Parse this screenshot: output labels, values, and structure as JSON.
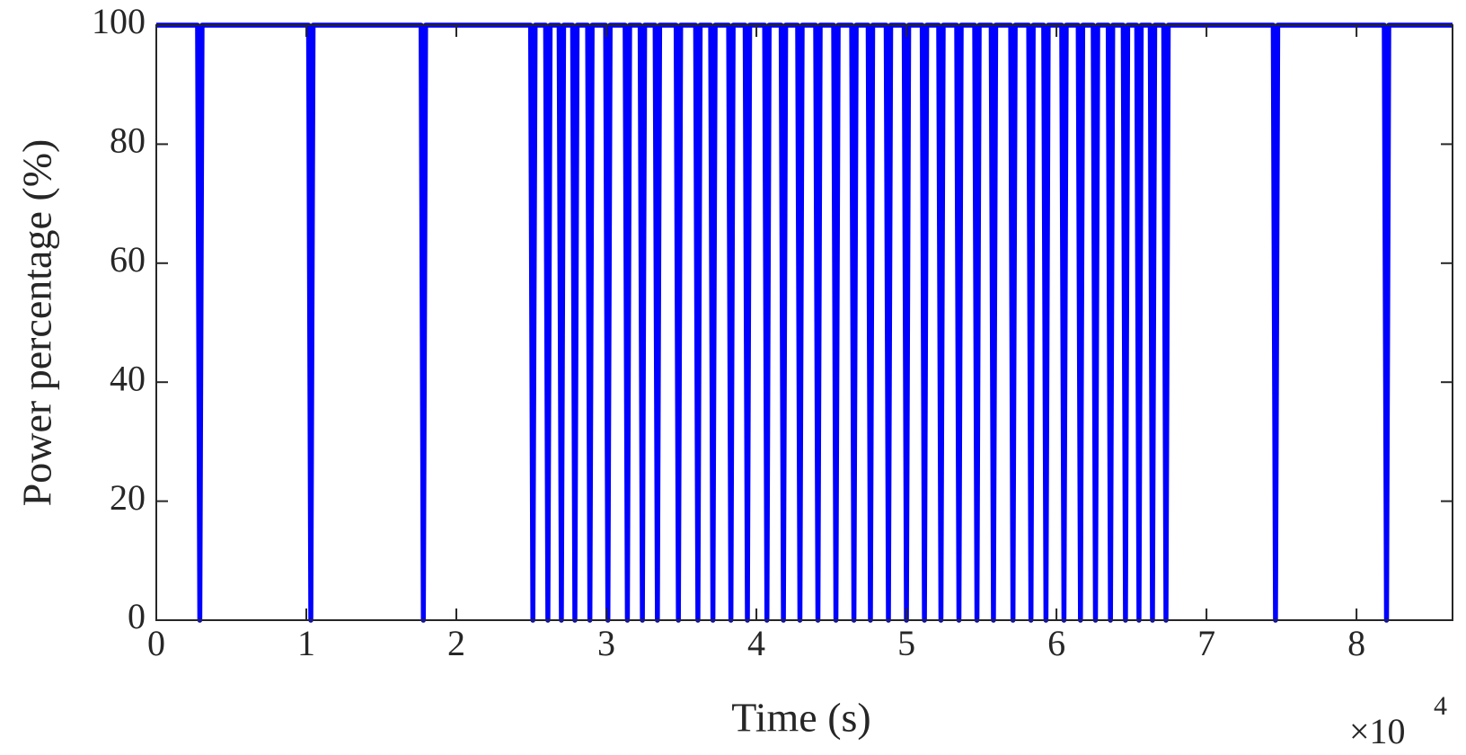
{
  "chart_data": {
    "type": "line",
    "x_label": "Time (s)",
    "y_label": "Power percentage (%)",
    "x_multiplier": {
      "base": "×10",
      "exponent": "4"
    },
    "color": "#0000ff",
    "xlim": [
      0,
      86400
    ],
    "ylim": [
      0,
      100
    ],
    "xticks": [
      0,
      {
        "value": 10000,
        "label": "1"
      },
      {
        "value": 20000,
        "label": "2"
      },
      {
        "value": 30000,
        "label": "3"
      },
      {
        "value": 40000,
        "label": "4"
      },
      {
        "value": 50000,
        "label": "5"
      },
      {
        "value": 60000,
        "label": "6"
      },
      {
        "value": 70000,
        "label": "7"
      },
      {
        "value": 80000,
        "label": "8"
      }
    ],
    "yticks": [
      0,
      20,
      40,
      60,
      80,
      100
    ],
    "grid": false,
    "x": [
      0,
      2750,
      2900,
      3050,
      10150,
      10300,
      10450,
      17650,
      17800,
      17950,
      24950,
      25100,
      25250,
      25950,
      26100,
      26250,
      26850,
      27000,
      27150,
      27750,
      27900,
      28050,
      28750,
      28900,
      29050,
      29950,
      30100,
      30250,
      31250,
      31400,
      31550,
      32250,
      32400,
      32550,
      33250,
      33400,
      33550,
      34650,
      34800,
      34950,
      35950,
      36100,
      36250,
      36950,
      37100,
      37250,
      38150,
      38300,
      38450,
      39250,
      39400,
      39550,
      40550,
      40700,
      40850,
      41650,
      41800,
      41950,
      42750,
      42900,
      43050,
      43950,
      44100,
      44250,
      45150,
      45300,
      45450,
      46350,
      46500,
      46650,
      47450,
      47600,
      47750,
      48650,
      48800,
      48950,
      49850,
      50000,
      50150,
      51050,
      51200,
      51350,
      52150,
      52300,
      52450,
      53350,
      53500,
      53650,
      54550,
      54700,
      54850,
      55650,
      55800,
      55950,
      56950,
      57100,
      57250,
      58150,
      58300,
      58450,
      59150,
      59300,
      59450,
      60350,
      60500,
      60650,
      61450,
      61600,
      61750,
      62450,
      62600,
      62750,
      63450,
      63600,
      63750,
      64450,
      64600,
      64750,
      65350,
      65500,
      65650,
      66250,
      66400,
      66550,
      67150,
      67300,
      67450,
      74450,
      74600,
      74750,
      81850,
      82000,
      82150,
      86400
    ],
    "values": [
      100,
      100,
      0,
      100,
      100,
      0,
      100,
      100,
      0,
      100,
      100,
      0,
      100,
      100,
      0,
      100,
      100,
      0,
      100,
      100,
      0,
      100,
      100,
      0,
      100,
      100,
      0,
      100,
      100,
      0,
      100,
      100,
      0,
      100,
      100,
      0,
      100,
      100,
      0,
      100,
      100,
      0,
      100,
      100,
      0,
      100,
      100,
      0,
      100,
      100,
      0,
      100,
      100,
      0,
      100,
      100,
      0,
      100,
      100,
      0,
      100,
      100,
      0,
      100,
      100,
      0,
      100,
      100,
      0,
      100,
      100,
      0,
      100,
      100,
      0,
      100,
      100,
      0,
      100,
      100,
      0,
      100,
      100,
      0,
      100,
      100,
      0,
      100,
      100,
      0,
      100,
      100,
      0,
      100,
      100,
      0,
      100,
      100,
      0,
      100,
      100,
      0,
      100,
      100,
      0,
      100,
      100,
      0,
      100,
      100,
      0,
      100,
      100,
      0,
      100,
      100,
      0,
      100,
      100,
      0,
      100,
      100,
      0,
      100,
      100,
      0,
      100,
      100,
      0,
      100,
      100,
      0,
      100,
      100
    ]
  }
}
